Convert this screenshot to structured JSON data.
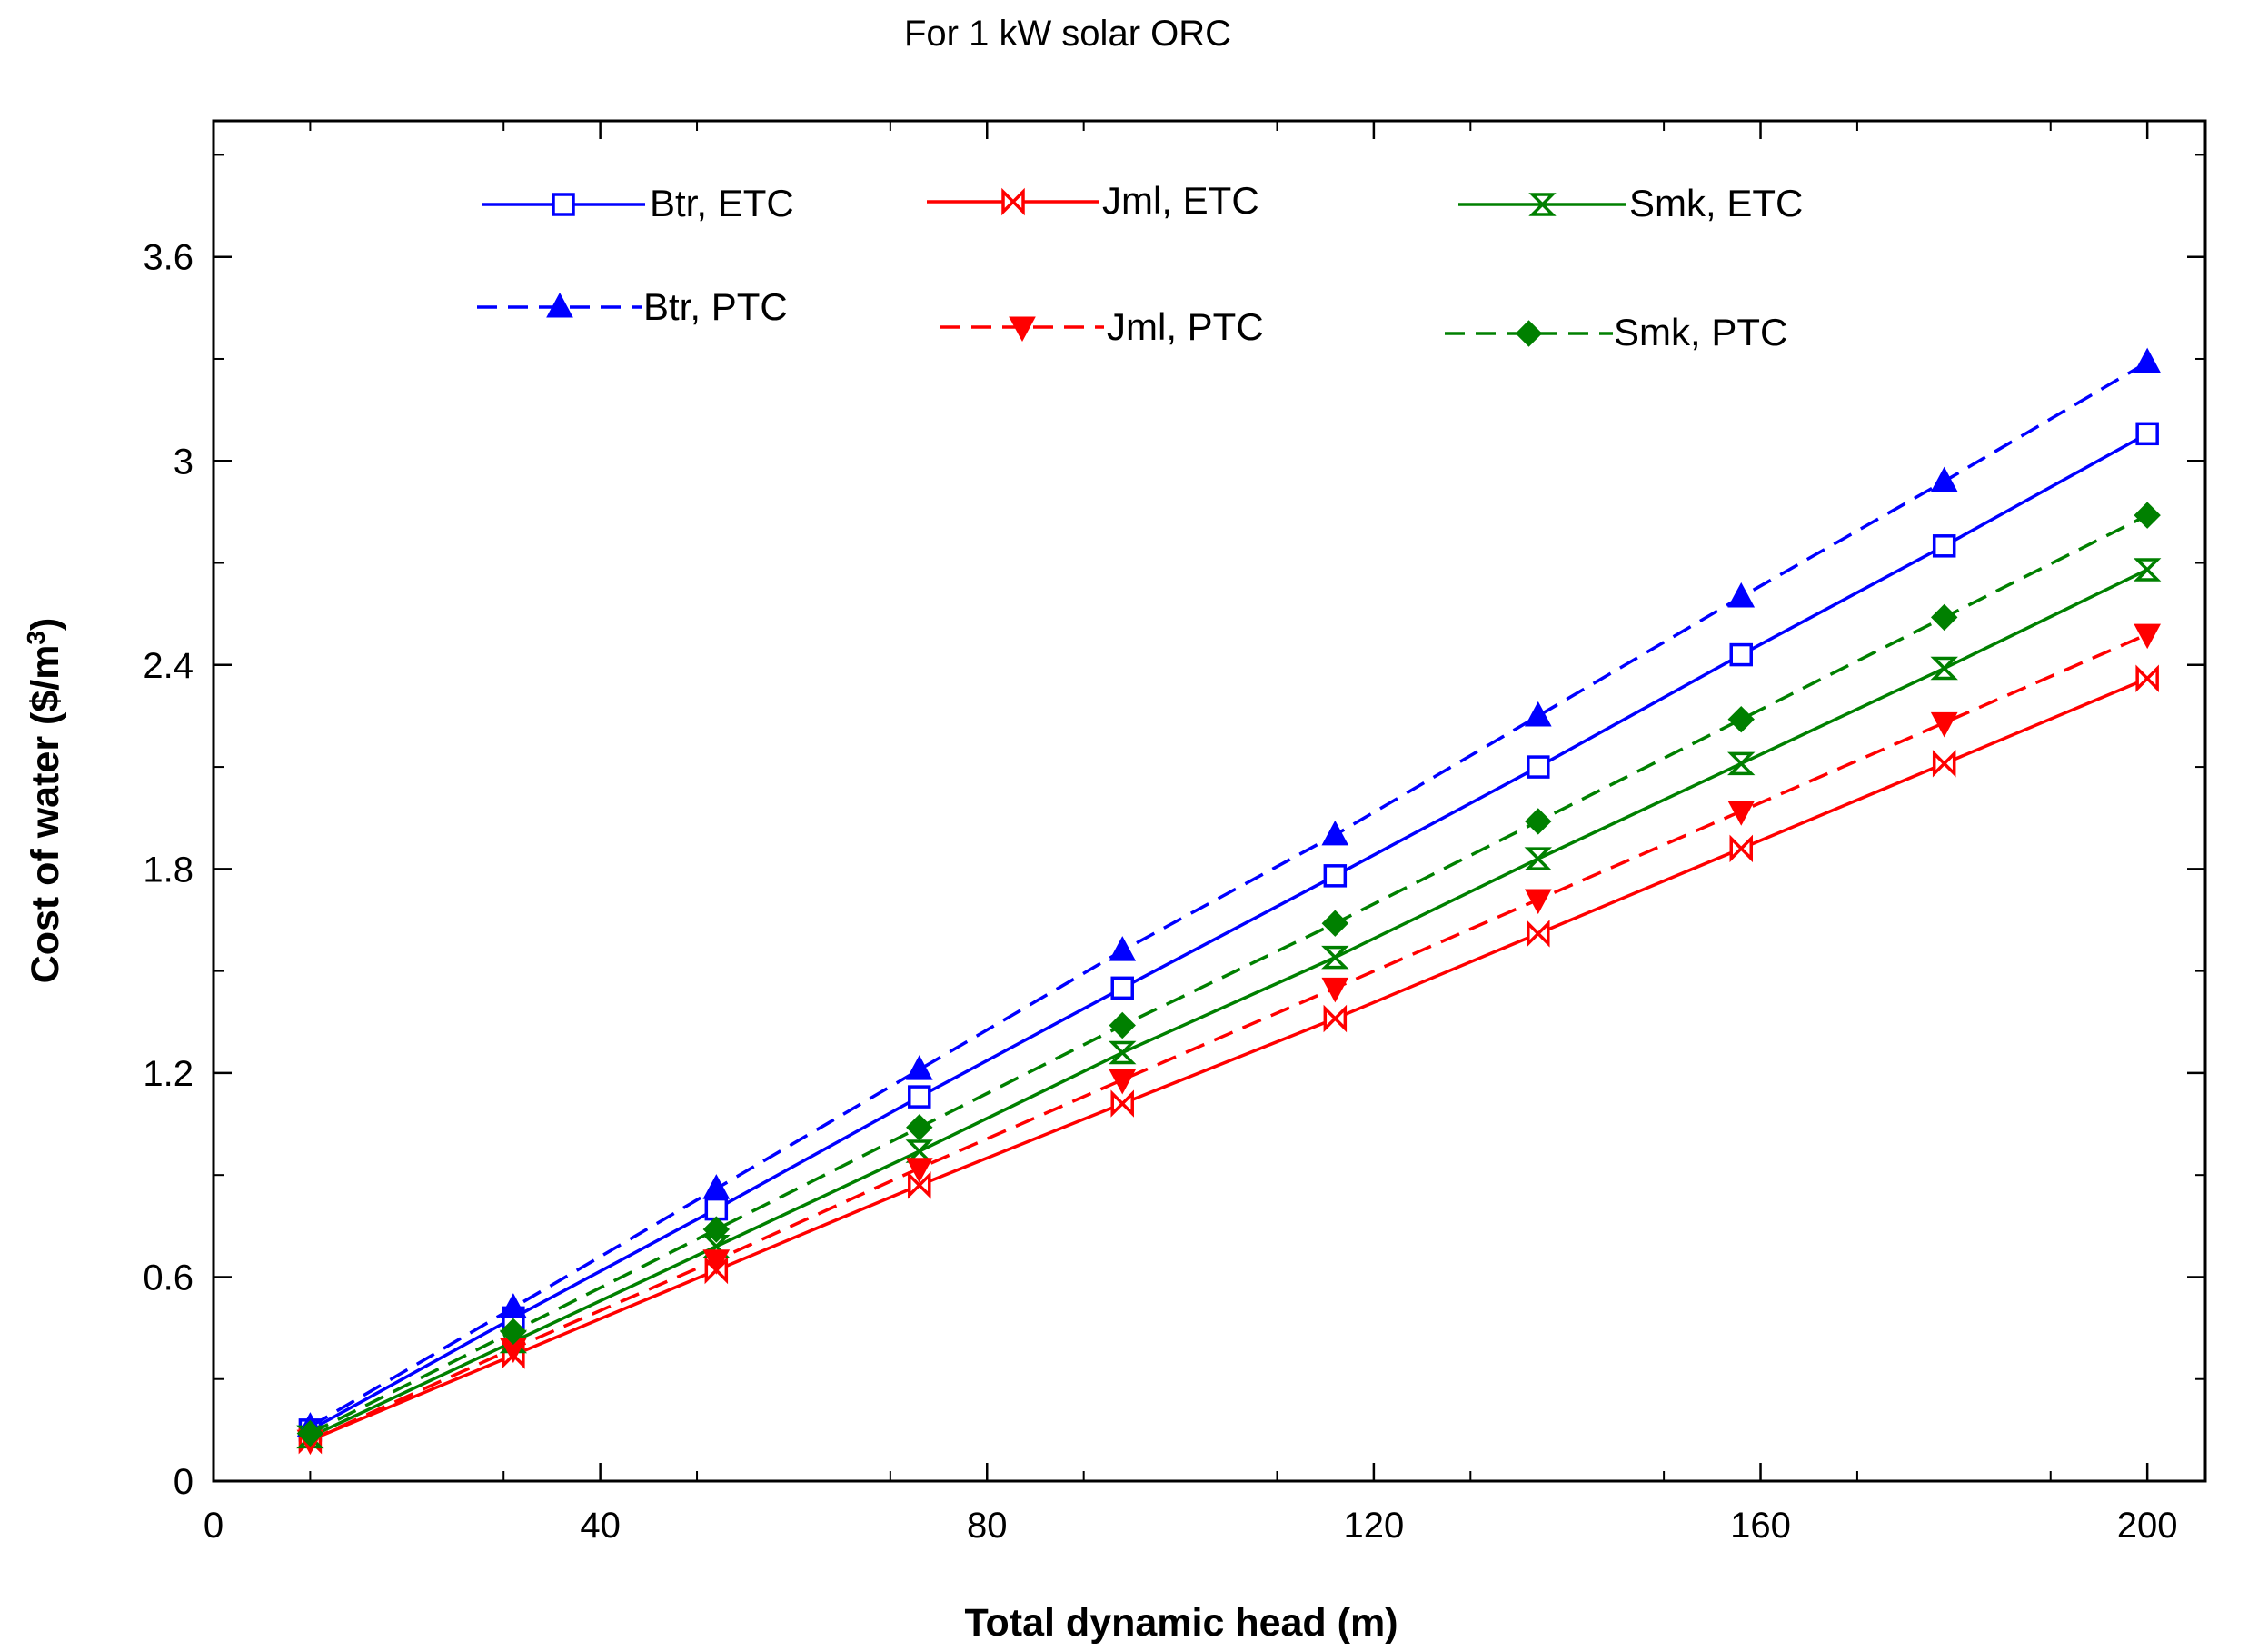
{
  "chart_data": {
    "type": "line",
    "title": "For 1 kW solar ORC",
    "xlabel": "Total dynamic head (m)",
    "ylabel": "Cost of water ($/m³)",
    "ylabel_base": "Cost of water ($/m",
    "ylabel_sup": "3",
    "ylabel_end": ")",
    "xlim": [
      0,
      206
    ],
    "ylim": [
      0,
      4.0
    ],
    "xticks": [
      0,
      40,
      80,
      120,
      160,
      200
    ],
    "yticks": [
      0,
      0.6,
      1.2,
      1.8,
      2.4,
      3,
      3.6
    ],
    "xtick_labels": [
      "0",
      "40",
      "80",
      "120",
      "160",
      "200"
    ],
    "ytick_labels": [
      "0",
      "0.6",
      "1.2",
      "1.8",
      "2.4",
      "3",
      "3.6"
    ],
    "x": [
      10,
      31,
      52,
      73,
      94,
      116,
      137,
      158,
      179,
      200
    ],
    "series": [
      {
        "name": "Btr, ETC",
        "color": "#0000ff",
        "dashed": false,
        "marker": "open-square",
        "values": [
          0.15,
          0.48,
          0.8,
          1.13,
          1.45,
          1.78,
          2.1,
          2.43,
          2.75,
          3.08
        ]
      },
      {
        "name": "Jml, ETC",
        "color": "#ff0000",
        "dashed": false,
        "marker": "bowtie",
        "values": [
          0.12,
          0.37,
          0.62,
          0.87,
          1.11,
          1.36,
          1.61,
          1.86,
          2.11,
          2.36
        ]
      },
      {
        "name": "Smk, ETC",
        "color": "#008000",
        "dashed": false,
        "marker": "hourglass",
        "values": [
          0.13,
          0.41,
          0.69,
          0.97,
          1.26,
          1.54,
          1.83,
          2.11,
          2.39,
          2.68
        ]
      },
      {
        "name": "Btr, PTC",
        "color": "#0000ff",
        "dashed": true,
        "marker": "triangle-up",
        "values": [
          0.16,
          0.51,
          0.86,
          1.21,
          1.56,
          1.9,
          2.25,
          2.6,
          2.94,
          3.29
        ]
      },
      {
        "name": "Jml, PTC",
        "color": "#ff0000",
        "dashed": true,
        "marker": "triangle-down",
        "values": [
          0.12,
          0.39,
          0.65,
          0.92,
          1.18,
          1.45,
          1.71,
          1.97,
          2.23,
          2.49
        ]
      },
      {
        "name": "Smk, PTC",
        "color": "#008000",
        "dashed": true,
        "marker": "diamond",
        "values": [
          0.14,
          0.44,
          0.74,
          1.04,
          1.34,
          1.64,
          1.94,
          2.24,
          2.54,
          2.84
        ]
      }
    ],
    "legend_placement": "top-left, two rows of three"
  }
}
